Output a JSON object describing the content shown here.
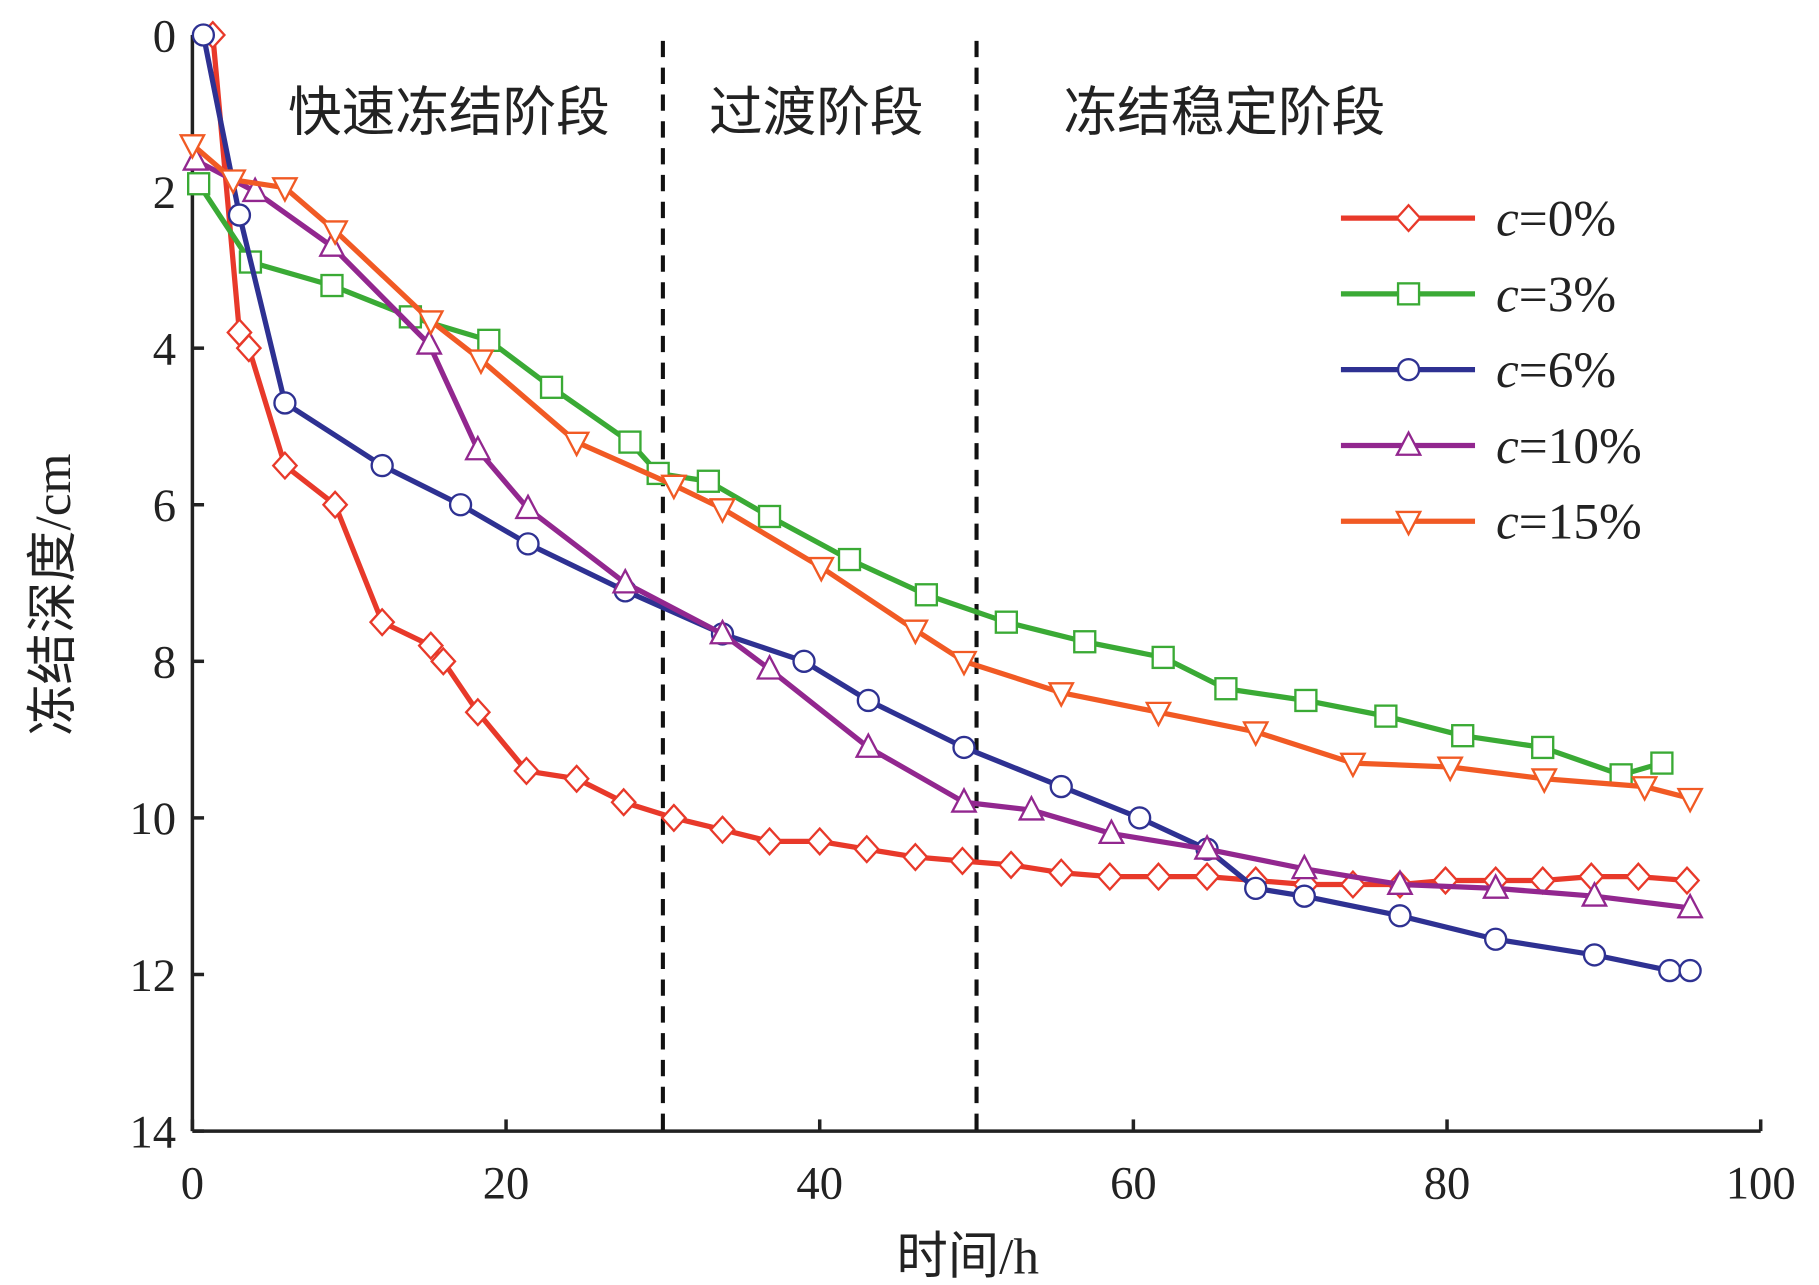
{
  "chart_data": {
    "type": "line",
    "title": "",
    "xlabel": "时间/h",
    "ylabel": "冻结深度/cm",
    "xlim": [
      0,
      100
    ],
    "ylim": [
      0,
      14
    ],
    "y_inverted": true,
    "xticks": [
      0,
      20,
      40,
      60,
      80,
      100
    ],
    "yticks": [
      0,
      2,
      4,
      6,
      8,
      10,
      12,
      14
    ],
    "grid": false,
    "legend_position": "right",
    "phase_dividers": [
      30,
      50
    ],
    "phases": [
      "快速冻结阶段",
      "过渡阶段",
      "冻结稳定阶段"
    ],
    "series": [
      {
        "name": "c=0%",
        "color": "#e8392a",
        "marker": "diamond",
        "points": [
          [
            1.3,
            0
          ],
          [
            3,
            3.8
          ],
          [
            3.6,
            4.0
          ],
          [
            5.9,
            5.5
          ],
          [
            9.1,
            6.0
          ],
          [
            12.1,
            7.5
          ],
          [
            15.2,
            7.8
          ],
          [
            16,
            8.0
          ],
          [
            18.2,
            8.65
          ],
          [
            21.3,
            9.4
          ],
          [
            24.5,
            9.5
          ],
          [
            27.5,
            9.8
          ],
          [
            30.7,
            10.0
          ],
          [
            33.8,
            10.15
          ],
          [
            36.8,
            10.3
          ],
          [
            40,
            10.3
          ],
          [
            43,
            10.4
          ],
          [
            46.1,
            10.5
          ],
          [
            49.1,
            10.55
          ],
          [
            52.2,
            10.6
          ],
          [
            55.4,
            10.7
          ],
          [
            58.5,
            10.75
          ],
          [
            61.6,
            10.75
          ],
          [
            64.7,
            10.75
          ],
          [
            67.8,
            10.8
          ],
          [
            71,
            10.85
          ],
          [
            74,
            10.85
          ],
          [
            77,
            10.85
          ],
          [
            79.9,
            10.8
          ],
          [
            83.1,
            10.8
          ],
          [
            86.1,
            10.8
          ],
          [
            89.2,
            10.75
          ],
          [
            92.2,
            10.75
          ],
          [
            95.3,
            10.8
          ]
        ]
      },
      {
        "name": "c=3%",
        "color": "#3aaa35",
        "marker": "square",
        "points": [
          [
            0.4,
            1.9
          ],
          [
            3.7,
            2.9
          ],
          [
            8.9,
            3.2
          ],
          [
            13.9,
            3.6
          ],
          [
            18.9,
            3.9
          ],
          [
            22.9,
            4.5
          ],
          [
            27.9,
            5.2
          ],
          [
            29.7,
            5.6
          ],
          [
            32.9,
            5.7
          ],
          [
            36.8,
            6.15
          ],
          [
            41.9,
            6.7
          ],
          [
            46.8,
            7.15
          ],
          [
            51.9,
            7.5
          ],
          [
            56.9,
            7.75
          ],
          [
            61.9,
            7.95
          ],
          [
            65.9,
            8.35
          ],
          [
            71,
            8.5
          ],
          [
            76.1,
            8.7
          ],
          [
            81,
            8.95
          ],
          [
            86.1,
            9.1
          ],
          [
            91.1,
            9.45
          ],
          [
            93.7,
            9.3
          ]
        ]
      },
      {
        "name": "c=6%",
        "color": "#2e3192",
        "marker": "circle",
        "points": [
          [
            0.7,
            0
          ],
          [
            3,
            2.3
          ],
          [
            5.9,
            4.7
          ],
          [
            12.1,
            5.5
          ],
          [
            17.1,
            6.0
          ],
          [
            21.4,
            6.5
          ],
          [
            27.6,
            7.1
          ],
          [
            33.8,
            7.65
          ],
          [
            39,
            8.0
          ],
          [
            43.1,
            8.5
          ],
          [
            49.2,
            9.1
          ],
          [
            55.4,
            9.6
          ],
          [
            60.4,
            10.0
          ],
          [
            64.7,
            10.4
          ],
          [
            67.8,
            10.9
          ],
          [
            70.9,
            11.0
          ],
          [
            77,
            11.25
          ],
          [
            83.1,
            11.55
          ],
          [
            89.4,
            11.75
          ],
          [
            94.2,
            11.95
          ],
          [
            95.5,
            11.95
          ]
        ]
      },
      {
        "name": "c=10%",
        "color": "#92278f",
        "marker": "triangle",
        "points": [
          [
            0.2,
            1.6
          ],
          [
            4,
            2.0
          ],
          [
            8.9,
            2.7
          ],
          [
            15.1,
            3.95
          ],
          [
            18.2,
            5.3
          ],
          [
            21.4,
            6.05
          ],
          [
            27.6,
            7.0
          ],
          [
            33.8,
            7.65
          ],
          [
            36.8,
            8.1
          ],
          [
            43.1,
            9.1
          ],
          [
            49.2,
            9.8
          ],
          [
            53.5,
            9.9
          ],
          [
            58.6,
            10.2
          ],
          [
            64.7,
            10.4
          ],
          [
            70.9,
            10.65
          ],
          [
            77,
            10.85
          ],
          [
            83.1,
            10.9
          ],
          [
            89.4,
            11.0
          ],
          [
            95.5,
            11.15
          ]
        ]
      },
      {
        "name": "c=15%",
        "color": "#f15a24",
        "marker": "triangle-down",
        "points": [
          [
            0,
            1.4
          ],
          [
            2.6,
            1.85
          ],
          [
            5.9,
            1.95
          ],
          [
            9.1,
            2.5
          ],
          [
            15.2,
            3.65
          ],
          [
            18.4,
            4.15
          ],
          [
            24.5,
            5.2
          ],
          [
            30.7,
            5.75
          ],
          [
            33.8,
            6.05
          ],
          [
            40.1,
            6.8
          ],
          [
            46.1,
            7.6
          ],
          [
            49.2,
            8.0
          ],
          [
            55.4,
            8.4
          ],
          [
            61.6,
            8.65
          ],
          [
            67.8,
            8.9
          ],
          [
            74,
            9.3
          ],
          [
            80.2,
            9.35
          ],
          [
            86.2,
            9.5
          ],
          [
            92.6,
            9.6
          ],
          [
            95.5,
            9.75
          ]
        ]
      }
    ]
  }
}
